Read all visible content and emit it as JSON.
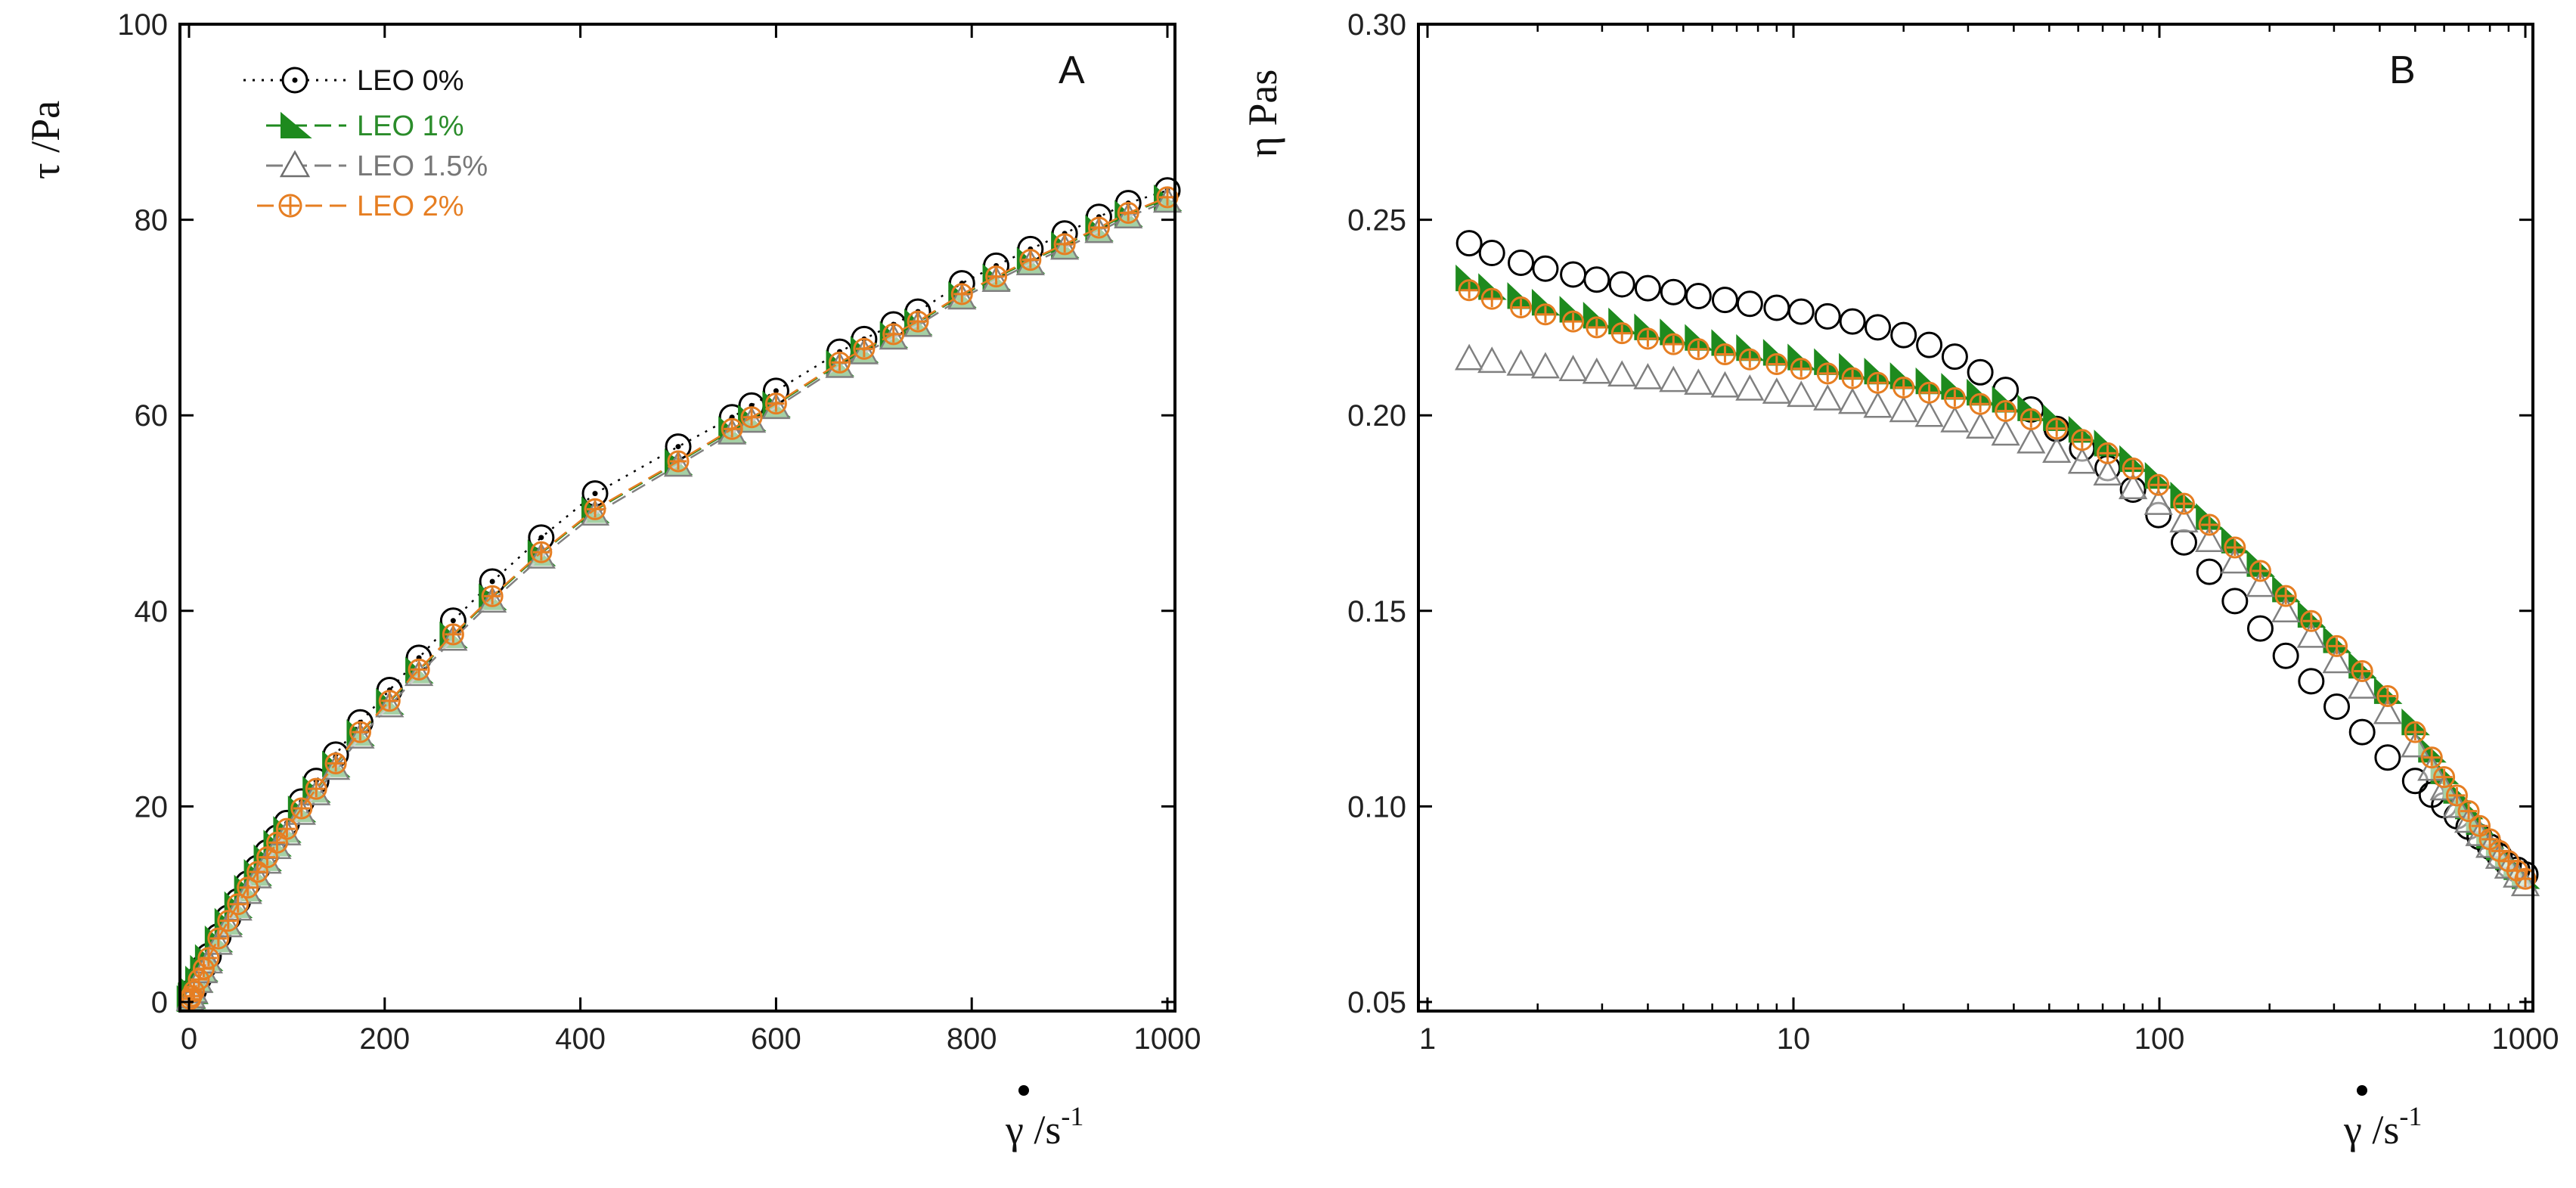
{
  "colors": {
    "leo0": "#000000",
    "leo1": "#1e8a1e",
    "leo15": "#808080",
    "leo2": "#e67e22",
    "axis": "#000000"
  },
  "chart_data": [
    {
      "type": "scatter",
      "panel_label": "A",
      "xlabel": "γ /s",
      "xlabel_sup": "-1",
      "ylabel": "τ /Pa",
      "xlim": [
        0,
        1000
      ],
      "ylim": [
        0,
        100
      ],
      "xticks": [
        0,
        200,
        400,
        600,
        800,
        1000
      ],
      "yticks": [
        0,
        20,
        40,
        60,
        80,
        100
      ],
      "legend_position": "top-left",
      "series": [
        {
          "name": "LEO 0%",
          "marker": "circle-dot",
          "line": "dotted",
          "x": [
            1.3,
            2.5,
            5,
            10,
            15,
            20,
            30,
            40,
            50,
            60,
            70,
            80,
            90,
            100,
            115,
            130,
            150,
            175,
            205,
            235,
            270,
            310,
            360,
            415,
            500,
            555,
            575,
            600,
            665,
            690,
            720,
            745,
            790,
            825,
            860,
            895,
            930,
            960,
            1000
          ],
          "y": [
            0.3,
            0.6,
            1.2,
            2.4,
            3.6,
            4.7,
            6.7,
            8.6,
            10.3,
            12.1,
            13.7,
            15.3,
            16.8,
            18.3,
            20.5,
            22.6,
            25.3,
            28.6,
            31.9,
            35.2,
            39.0,
            43.0,
            47.5,
            52.0,
            56.8,
            59.8,
            61.0,
            62.5,
            66.5,
            67.8,
            69.3,
            70.6,
            73.5,
            75.3,
            77.0,
            78.6,
            80.3,
            81.7,
            83.0
          ]
        },
        {
          "name": "LEO 1%",
          "marker": "triangle-half",
          "line": "dashed",
          "x": [
            1.3,
            2.5,
            5,
            10,
            15,
            20,
            30,
            40,
            50,
            60,
            70,
            80,
            90,
            100,
            115,
            130,
            150,
            175,
            205,
            235,
            270,
            310,
            360,
            415,
            500,
            555,
            575,
            600,
            665,
            690,
            720,
            745,
            790,
            825,
            860,
            895,
            930,
            960,
            1000
          ],
          "y": [
            0.3,
            0.6,
            1.1,
            2.3,
            3.4,
            4.5,
            6.4,
            8.2,
            9.9,
            11.6,
            13.2,
            14.7,
            16.2,
            17.6,
            19.7,
            21.7,
            24.3,
            27.5,
            30.7,
            33.9,
            37.5,
            41.4,
            45.9,
            50.3,
            55.2,
            58.5,
            59.7,
            61.1,
            65.3,
            66.7,
            68.2,
            69.5,
            72.3,
            74.1,
            75.8,
            77.4,
            79.1,
            80.6,
            82.2
          ]
        },
        {
          "name": "LEO 1.5%",
          "marker": "triangle-open",
          "line": "dashed",
          "x": [
            1.3,
            2.5,
            5,
            10,
            15,
            20,
            30,
            40,
            50,
            60,
            70,
            80,
            90,
            100,
            115,
            130,
            150,
            175,
            205,
            235,
            270,
            310,
            360,
            415,
            500,
            555,
            575,
            600,
            665,
            690,
            720,
            745,
            790,
            825,
            860,
            895,
            930,
            960,
            1000
          ],
          "y": [
            0.27,
            0.54,
            1.05,
            2.1,
            3.1,
            4.1,
            6.0,
            7.8,
            9.5,
            11.2,
            12.8,
            14.3,
            15.8,
            17.2,
            19.3,
            21.3,
            23.9,
            27.1,
            30.3,
            33.5,
            37.1,
            41.0,
            45.5,
            49.9,
            54.9,
            58.2,
            59.4,
            60.8,
            65.0,
            66.4,
            67.9,
            69.2,
            72.0,
            73.8,
            75.5,
            77.1,
            78.8,
            80.3,
            81.9
          ]
        },
        {
          "name": "LEO 2%",
          "marker": "plus-circle",
          "line": "dashed",
          "x": [
            1.3,
            2.5,
            5,
            10,
            15,
            20,
            30,
            40,
            50,
            60,
            70,
            80,
            90,
            100,
            115,
            130,
            150,
            175,
            205,
            235,
            270,
            310,
            360,
            415,
            500,
            555,
            575,
            600,
            665,
            690,
            720,
            745,
            790,
            825,
            860,
            895,
            930,
            960,
            1000
          ],
          "y": [
            0.3,
            0.6,
            1.1,
            2.3,
            3.4,
            4.5,
            6.5,
            8.3,
            10.0,
            11.7,
            13.3,
            14.8,
            16.3,
            17.7,
            19.8,
            21.8,
            24.4,
            27.6,
            30.8,
            34.0,
            37.6,
            41.5,
            46.0,
            50.4,
            55.3,
            58.6,
            59.8,
            61.2,
            65.4,
            66.8,
            68.3,
            69.6,
            72.4,
            74.2,
            75.9,
            77.5,
            79.2,
            80.7,
            82.3
          ]
        }
      ]
    },
    {
      "type": "scatter",
      "panel_label": "B",
      "xlabel": "γ /s",
      "xlabel_sup": "-1",
      "ylabel": "η Pas",
      "xscale": "log",
      "xlim": [
        1,
        1000
      ],
      "ylim": [
        0.05,
        0.3
      ],
      "xticks": [
        1,
        10,
        100,
        1000
      ],
      "xtick_labels": [
        "1",
        "10",
        "100",
        "1000"
      ],
      "yticks": [
        0.05,
        0.1,
        0.15,
        0.2,
        0.25,
        0.3
      ],
      "ytick_labels": [
        "0.05",
        "0.10",
        "0.15",
        "0.20",
        "0.25",
        "0.30"
      ],
      "series": [
        {
          "name": "LEO 0%",
          "marker": "circle",
          "x": [
            1.3,
            1.5,
            1.8,
            2.1,
            2.5,
            2.9,
            3.4,
            4,
            4.7,
            5.5,
            6.5,
            7.6,
            9,
            10.5,
            12.4,
            14.5,
            17,
            20,
            23.5,
            27.6,
            32.4,
            38,
            44.6,
            52.4,
            61.5,
            72.2,
            84.7,
            99.4,
            116.7,
            137,
            160.8,
            188.7,
            221.5,
            260,
            305.2,
            358.2,
            420.5,
            500,
            555,
            600,
            650,
            700,
            750,
            800,
            850,
            900,
            950,
            1000
          ],
          "y": [
            0.244,
            0.2415,
            0.239,
            0.2375,
            0.236,
            0.2347,
            0.2335,
            0.2325,
            0.2315,
            0.2305,
            0.2295,
            0.2285,
            0.2275,
            0.2265,
            0.2253,
            0.224,
            0.2225,
            0.2205,
            0.218,
            0.215,
            0.211,
            0.2065,
            0.2015,
            0.1965,
            0.1915,
            0.1865,
            0.181,
            0.1745,
            0.1675,
            0.16,
            0.1525,
            0.1455,
            0.1385,
            0.132,
            0.1255,
            0.119,
            0.1125,
            0.1065,
            0.103,
            0.1003,
            0.0975,
            0.0948,
            0.0922,
            0.0897,
            0.0873,
            0.085,
            0.0838,
            0.0826
          ]
        },
        {
          "name": "LEO 1%",
          "marker": "triangle-half",
          "x": [
            1.3,
            1.5,
            1.8,
            2.1,
            2.5,
            2.9,
            3.4,
            4,
            4.7,
            5.5,
            6.5,
            7.6,
            9,
            10.5,
            12.4,
            14.5,
            17,
            20,
            23.5,
            27.6,
            32.4,
            38,
            44.6,
            52.4,
            61.5,
            72.2,
            84.7,
            99.4,
            116.7,
            137,
            160.8,
            188.7,
            221.5,
            260,
            305.2,
            358.2,
            420.5,
            500,
            555,
            600,
            650,
            700,
            750,
            800,
            850,
            900,
            950,
            1000
          ],
          "y": [
            0.235,
            0.2328,
            0.2305,
            0.2288,
            0.227,
            0.2255,
            0.224,
            0.2225,
            0.2212,
            0.2198,
            0.2185,
            0.2172,
            0.216,
            0.2148,
            0.2136,
            0.2124,
            0.2112,
            0.21,
            0.2087,
            0.2073,
            0.2058,
            0.204,
            0.2018,
            0.1993,
            0.1963,
            0.1928,
            0.1888,
            0.1845,
            0.1795,
            0.174,
            0.168,
            0.162,
            0.1555,
            0.149,
            0.1425,
            0.136,
            0.1295,
            0.1215,
            0.1145,
            0.109,
            0.104,
            0.1,
            0.096,
            0.0925,
            0.0895,
            0.087,
            0.0845,
            0.0822
          ]
        },
        {
          "name": "LEO 1.5%",
          "marker": "triangle-open",
          "x": [
            1.3,
            1.5,
            1.8,
            2.1,
            2.5,
            2.9,
            3.4,
            4,
            4.7,
            5.5,
            6.5,
            7.6,
            9,
            10.5,
            12.4,
            14.5,
            17,
            20,
            23.5,
            27.6,
            32.4,
            38,
            44.6,
            52.4,
            61.5,
            72.2,
            84.7,
            99.4,
            116.7,
            137,
            160.8,
            188.7,
            221.5,
            260,
            305.2,
            358.2,
            420.5,
            500,
            555,
            600,
            650,
            700,
            750,
            800,
            850,
            900,
            950,
            1000
          ],
          "y": [
            0.2145,
            0.2138,
            0.2131,
            0.2124,
            0.2117,
            0.211,
            0.2103,
            0.2096,
            0.2089,
            0.2082,
            0.2075,
            0.2067,
            0.2059,
            0.2051,
            0.2042,
            0.2033,
            0.2023,
            0.2012,
            0.2,
            0.1986,
            0.197,
            0.1952,
            0.1932,
            0.1908,
            0.188,
            0.185,
            0.1815,
            0.1775,
            0.173,
            0.168,
            0.1625,
            0.1565,
            0.15,
            0.1435,
            0.137,
            0.1305,
            0.124,
            0.1155,
            0.1095,
            0.1045,
            0.1,
            0.0962,
            0.0928,
            0.0898,
            0.087,
            0.0845,
            0.0822,
            0.08
          ]
        },
        {
          "name": "LEO 2%",
          "marker": "plus-circle",
          "x": [
            1.3,
            1.5,
            1.8,
            2.1,
            2.5,
            2.9,
            3.4,
            4,
            4.7,
            5.5,
            6.5,
            7.6,
            9,
            10.5,
            12.4,
            14.5,
            17,
            20,
            23.5,
            27.6,
            32.4,
            38,
            44.6,
            52.4,
            61.5,
            72.2,
            84.7,
            99.4,
            116.7,
            137,
            160.8,
            188.7,
            221.5,
            260,
            305.2,
            358.2,
            420.5,
            500,
            555,
            600,
            650,
            700,
            750,
            800,
            850,
            900,
            950,
            1000
          ],
          "y": [
            0.232,
            0.2298,
            0.2276,
            0.2258,
            0.224,
            0.2225,
            0.221,
            0.2196,
            0.2182,
            0.2169,
            0.2156,
            0.2143,
            0.2131,
            0.2119,
            0.2107,
            0.2095,
            0.2083,
            0.2071,
            0.2058,
            0.2044,
            0.2029,
            0.2011,
            0.199,
            0.1966,
            0.1937,
            0.1903,
            0.1864,
            0.1822,
            0.1774,
            0.172,
            0.1662,
            0.1602,
            0.1538,
            0.1474,
            0.141,
            0.1346,
            0.1282,
            0.119,
            0.1125,
            0.1075,
            0.1028,
            0.0988,
            0.095,
            0.0916,
            0.0886,
            0.086,
            0.0836,
            0.0815
          ]
        }
      ]
    }
  ]
}
